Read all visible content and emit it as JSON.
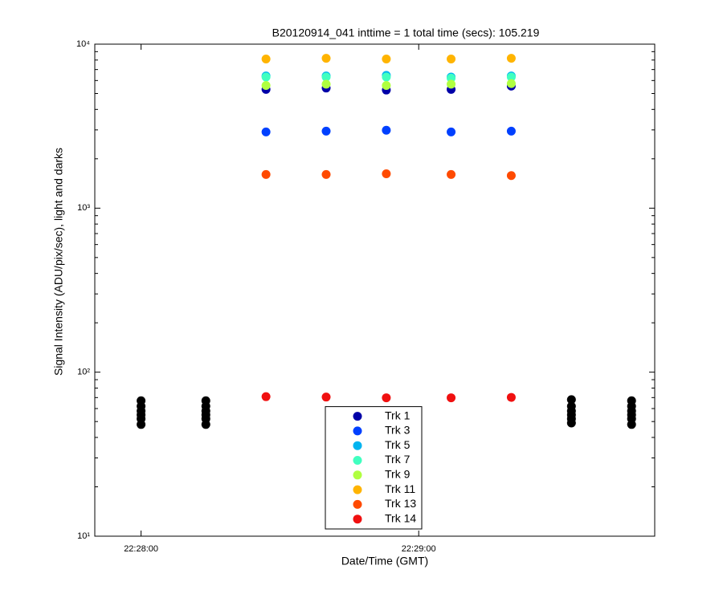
{
  "chart_data": {
    "type": "scatter",
    "title": "B20120914_041 inttime = 1 total time (secs): 105.219",
    "x_label": "Date/Time (GMT)",
    "y_label": "Signal Intensity (ADU/pix/sec), light and darks",
    "log_y": true,
    "legend": "bottom",
    "x": [
      "22:28:27",
      "22:28:40",
      "22:28:53",
      "22:29:07",
      "22:29:20"
    ],
    "xlim": [
      "22:27:50",
      "22:29:51"
    ],
    "xticks": [
      "22:28:00",
      "22:29:00"
    ],
    "ylim": [
      10,
      10000
    ],
    "yticks": [
      {
        "value": 10,
        "label": "10¹"
      },
      {
        "value": 100,
        "label": "10²"
      },
      {
        "value": 1000,
        "label": "10³"
      },
      {
        "value": 10000,
        "label": "10⁴"
      }
    ],
    "series": [
      {
        "name": "Trk 1",
        "color": "#0000a8",
        "values": [
          5300,
          5400,
          5250,
          5300,
          5550
        ]
      },
      {
        "name": "Trk 3",
        "color": "#0040ff",
        "values": [
          2915,
          2950,
          2985,
          2915,
          2950
        ]
      },
      {
        "name": "Trk 5",
        "color": "#00b4f0",
        "values": [
          6400,
          6400,
          6450,
          6300,
          6400
        ]
      },
      {
        "name": "Trk 7",
        "color": "#40ffc0",
        "values": [
          6300,
          6300,
          6300,
          6200,
          6300
        ]
      },
      {
        "name": "Trk 9",
        "color": "#b0ff40",
        "values": [
          5600,
          5700,
          5600,
          5700,
          5750
        ]
      },
      {
        "name": "Trk 11",
        "color": "#ffb400",
        "values": [
          8120,
          8200,
          8120,
          8120,
          8200
        ]
      },
      {
        "name": "Trk 13",
        "color": "#ff4a00",
        "values": [
          1605,
          1605,
          1620,
          1605,
          1580
        ]
      },
      {
        "name": "Trk 14",
        "color": "#f01010",
        "values": [
          70.9,
          70.5,
          69.8,
          69.8,
          70.2
        ]
      },
      {
        "color": "#000000",
        "x": [
          "22:28:00",
          "22:28:00",
          "22:28:00",
          "22:28:00",
          "22:28:00",
          "22:28:00",
          "22:28:14",
          "22:28:14",
          "22:28:14",
          "22:28:14",
          "22:28:14",
          "22:28:14",
          "22:29:33",
          "22:29:33",
          "22:29:33",
          "22:29:33",
          "22:29:33",
          "22:29:33",
          "22:29:46",
          "22:29:46",
          "22:29:46",
          "22:29:46",
          "22:29:46",
          "22:29:46"
        ],
        "values": [
          48,
          52,
          55,
          58,
          62,
          67,
          48,
          52,
          55,
          58,
          62,
          67,
          49,
          52,
          55,
          58,
          62,
          68,
          48,
          52,
          55,
          58,
          62,
          67
        ]
      }
    ]
  }
}
